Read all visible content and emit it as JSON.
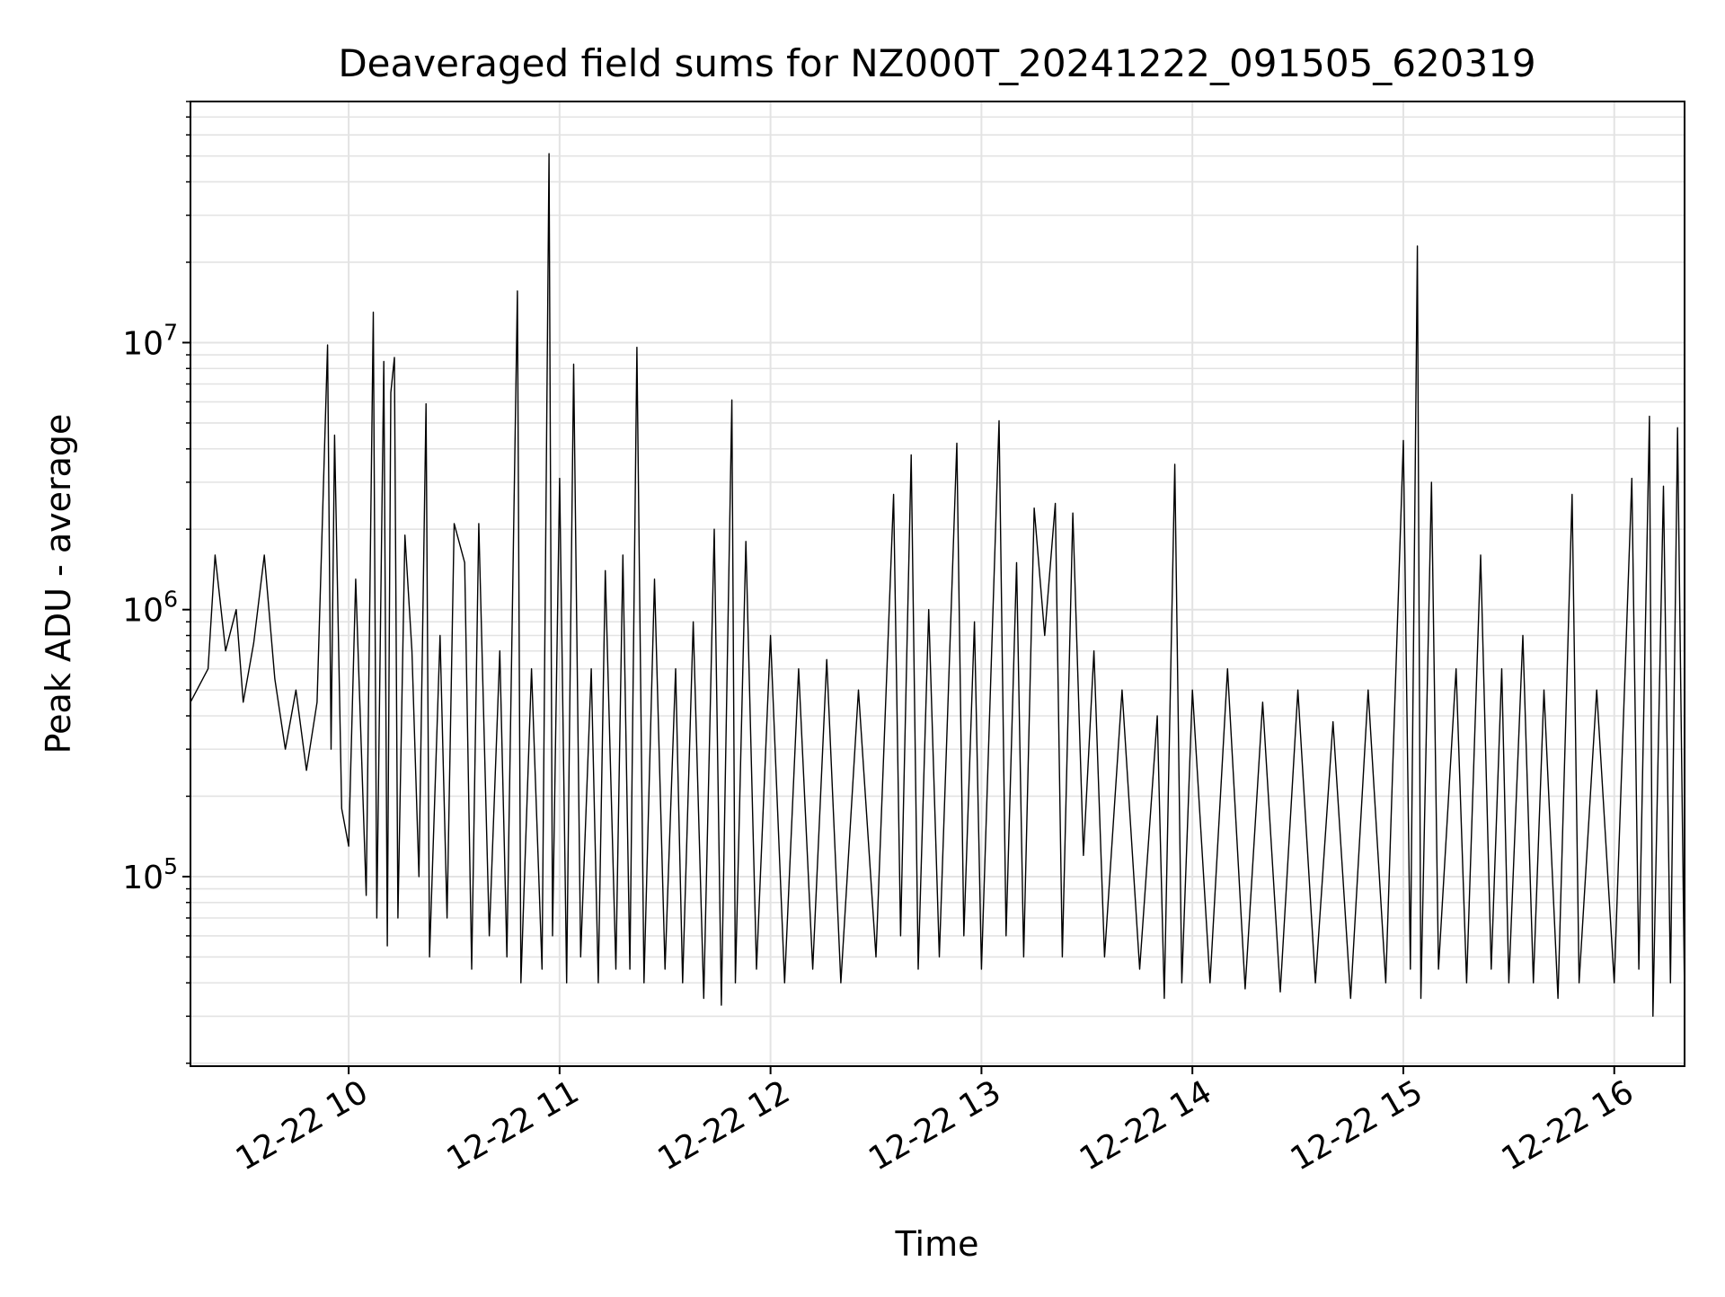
{
  "chart_data": {
    "type": "line",
    "title": "Deaveraged field sums for NZ000T_20241222_091505_620319",
    "xlabel": "Time",
    "ylabel": "Peak ADU - average",
    "y_scale": "log",
    "grid": true,
    "line_color": "#000000",
    "grid_color": "#e3e3e3",
    "xlim": [
      "12-22 09:15",
      "12-22 16:20"
    ],
    "ylim": [
      19500,
      80000000
    ],
    "x_ticks": [
      {
        "value": "12-22 10:00",
        "label": "12-22 10"
      },
      {
        "value": "12-22 11:00",
        "label": "12-22 11"
      },
      {
        "value": "12-22 12:00",
        "label": "12-22 12"
      },
      {
        "value": "12-22 13:00",
        "label": "12-22 13"
      },
      {
        "value": "12-22 14:00",
        "label": "12-22 14"
      },
      {
        "value": "12-22 15:00",
        "label": "12-22 15"
      },
      {
        "value": "12-22 16:00",
        "label": "12-22 16"
      }
    ],
    "y_ticks": [
      {
        "value": 100000,
        "base": "10",
        "exp": "5"
      },
      {
        "value": 1000000,
        "base": "10",
        "exp": "6"
      },
      {
        "value": 10000000,
        "base": "10",
        "exp": "7"
      }
    ],
    "series": [
      {
        "points": [
          [
            "12-22 09:15",
            450000
          ],
          [
            "12-22 09:20",
            600000
          ],
          [
            "12-22 09:22",
            1600000
          ],
          [
            "12-22 09:25",
            700000
          ],
          [
            "12-22 09:28",
            1000000
          ],
          [
            "12-22 09:30",
            450000
          ],
          [
            "12-22 09:33",
            750000
          ],
          [
            "12-22 09:36",
            1600000
          ],
          [
            "12-22 09:39",
            550000
          ],
          [
            "12-22 09:42",
            300000
          ],
          [
            "12-22 09:45",
            500000
          ],
          [
            "12-22 09:48",
            250000
          ],
          [
            "12-22 09:51",
            450000
          ],
          [
            "12-22 09:54",
            9800000
          ],
          [
            "12-22 09:55",
            300000
          ],
          [
            "12-22 09:56",
            4500000
          ],
          [
            "12-22 09:58",
            180000
          ],
          [
            "12-22 10:00",
            130000
          ],
          [
            "12-22 10:02",
            1300000
          ],
          [
            "12-22 10:05",
            85000
          ],
          [
            "12-22 10:07",
            13000000
          ],
          [
            "12-22 10:08",
            70000
          ],
          [
            "12-22 10:10",
            8500000
          ],
          [
            "12-22 10:11",
            55000
          ],
          [
            "12-22 10:12",
            6500000
          ],
          [
            "12-22 10:13",
            8800000
          ],
          [
            "12-22 10:14",
            70000
          ],
          [
            "12-22 10:16",
            1900000
          ],
          [
            "12-22 10:18",
            700000
          ],
          [
            "12-22 10:20",
            100000
          ],
          [
            "12-22 10:22",
            5900000
          ],
          [
            "12-22 10:23",
            50000
          ],
          [
            "12-22 10:26",
            800000
          ],
          [
            "12-22 10:28",
            70000
          ],
          [
            "12-22 10:30",
            2100000
          ],
          [
            "12-22 10:33",
            1500000
          ],
          [
            "12-22 10:35",
            45000
          ],
          [
            "12-22 10:37",
            2100000
          ],
          [
            "12-22 10:40",
            60000
          ],
          [
            "12-22 10:43",
            700000
          ],
          [
            "12-22 10:45",
            50000
          ],
          [
            "12-22 10:48",
            15600000
          ],
          [
            "12-22 10:49",
            40000
          ],
          [
            "12-22 10:52",
            600000
          ],
          [
            "12-22 10:55",
            45000
          ],
          [
            "12-22 10:57",
            51000000
          ],
          [
            "12-22 10:58",
            60000
          ],
          [
            "12-22 11:00",
            3100000
          ],
          [
            "12-22 11:02",
            40000
          ],
          [
            "12-22 11:04",
            8300000
          ],
          [
            "12-22 11:06",
            50000
          ],
          [
            "12-22 11:09",
            600000
          ],
          [
            "12-22 11:11",
            40000
          ],
          [
            "12-22 11:13",
            1400000
          ],
          [
            "12-22 11:16",
            45000
          ],
          [
            "12-22 11:18",
            1600000
          ],
          [
            "12-22 11:20",
            45000
          ],
          [
            "12-22 11:22",
            9600000
          ],
          [
            "12-22 11:24",
            40000
          ],
          [
            "12-22 11:27",
            1300000
          ],
          [
            "12-22 11:30",
            45000
          ],
          [
            "12-22 11:33",
            600000
          ],
          [
            "12-22 11:35",
            40000
          ],
          [
            "12-22 11:38",
            900000
          ],
          [
            "12-22 11:41",
            35000
          ],
          [
            "12-22 11:44",
            2000000
          ],
          [
            "12-22 11:46",
            33000
          ],
          [
            "12-22 11:49",
            6100000
          ],
          [
            "12-22 11:50",
            40000
          ],
          [
            "12-22 11:53",
            1800000
          ],
          [
            "12-22 11:56",
            45000
          ],
          [
            "12-22 12:00",
            800000
          ],
          [
            "12-22 12:04",
            40000
          ],
          [
            "12-22 12:08",
            600000
          ],
          [
            "12-22 12:12",
            45000
          ],
          [
            "12-22 12:16",
            650000
          ],
          [
            "12-22 12:20",
            40000
          ],
          [
            "12-22 12:25",
            500000
          ],
          [
            "12-22 12:30",
            50000
          ],
          [
            "12-22 12:35",
            2700000
          ],
          [
            "12-22 12:37",
            60000
          ],
          [
            "12-22 12:40",
            3800000
          ],
          [
            "12-22 12:42",
            45000
          ],
          [
            "12-22 12:45",
            1000000
          ],
          [
            "12-22 12:48",
            50000
          ],
          [
            "12-22 12:53",
            4200000
          ],
          [
            "12-22 12:55",
            60000
          ],
          [
            "12-22 12:58",
            900000
          ],
          [
            "12-22 13:00",
            45000
          ],
          [
            "12-22 13:05",
            5100000
          ],
          [
            "12-22 13:07",
            60000
          ],
          [
            "12-22 13:10",
            1500000
          ],
          [
            "12-22 13:12",
            50000
          ],
          [
            "12-22 13:15",
            2400000
          ],
          [
            "12-22 13:18",
            800000
          ],
          [
            "12-22 13:21",
            2500000
          ],
          [
            "12-22 13:23",
            50000
          ],
          [
            "12-22 13:26",
            2300000
          ],
          [
            "12-22 13:29",
            120000
          ],
          [
            "12-22 13:32",
            700000
          ],
          [
            "12-22 13:35",
            50000
          ],
          [
            "12-22 13:40",
            500000
          ],
          [
            "12-22 13:45",
            45000
          ],
          [
            "12-22 13:50",
            400000
          ],
          [
            "12-22 13:52",
            35000
          ],
          [
            "12-22 13:55",
            3500000
          ],
          [
            "12-22 13:57",
            40000
          ],
          [
            "12-22 14:00",
            500000
          ],
          [
            "12-22 14:05",
            40000
          ],
          [
            "12-22 14:10",
            600000
          ],
          [
            "12-22 14:15",
            38000
          ],
          [
            "12-22 14:20",
            450000
          ],
          [
            "12-22 14:25",
            37000
          ],
          [
            "12-22 14:30",
            500000
          ],
          [
            "12-22 14:35",
            40000
          ],
          [
            "12-22 14:40",
            380000
          ],
          [
            "12-22 14:45",
            35000
          ],
          [
            "12-22 14:50",
            500000
          ],
          [
            "12-22 14:55",
            40000
          ],
          [
            "12-22 15:00",
            4300000
          ],
          [
            "12-22 15:02",
            45000
          ],
          [
            "12-22 15:04",
            23000000
          ],
          [
            "12-22 15:05",
            35000
          ],
          [
            "12-22 15:08",
            3000000
          ],
          [
            "12-22 15:10",
            45000
          ],
          [
            "12-22 15:15",
            600000
          ],
          [
            "12-22 15:18",
            40000
          ],
          [
            "12-22 15:22",
            1600000
          ],
          [
            "12-22 15:25",
            45000
          ],
          [
            "12-22 15:28",
            600000
          ],
          [
            "12-22 15:30",
            40000
          ],
          [
            "12-22 15:34",
            800000
          ],
          [
            "12-22 15:37",
            40000
          ],
          [
            "12-22 15:40",
            500000
          ],
          [
            "12-22 15:44",
            35000
          ],
          [
            "12-22 15:48",
            2700000
          ],
          [
            "12-22 15:50",
            40000
          ],
          [
            "12-22 15:55",
            500000
          ],
          [
            "12-22 16:00",
            40000
          ],
          [
            "12-22 16:05",
            3100000
          ],
          [
            "12-22 16:07",
            45000
          ],
          [
            "12-22 16:10",
            5300000
          ],
          [
            "12-22 16:11",
            30000
          ],
          [
            "12-22 16:14",
            2900000
          ],
          [
            "12-22 16:16",
            40000
          ],
          [
            "12-22 16:18",
            4800000
          ],
          [
            "12-22 16:20",
            35000
          ]
        ]
      }
    ]
  }
}
